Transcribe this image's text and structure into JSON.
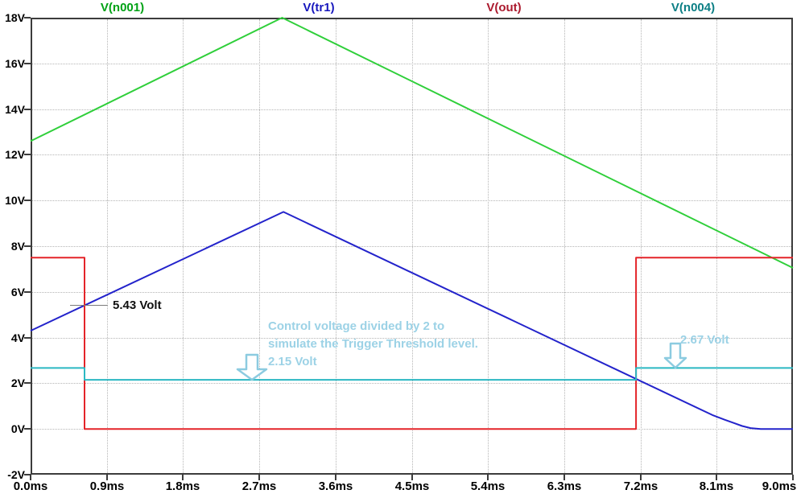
{
  "legend": {
    "items": [
      {
        "label": "V(n001)",
        "text_color": "#00a215",
        "trace_color": "#2fcf3a"
      },
      {
        "label": "V(tr1)",
        "text_color": "#1717bd",
        "trace_color": "#2323cb"
      },
      {
        "label": "V(out)",
        "text_color": "#ab1a2e",
        "trace_color": "#e42429"
      },
      {
        "label": "V(n004)",
        "text_color": "#0c7f85",
        "trace_color": "#2bb8c2"
      }
    ]
  },
  "axes": {
    "x": {
      "tick_labels": [
        "0.0ms",
        "0.9ms",
        "1.8ms",
        "2.7ms",
        "3.6ms",
        "4.5ms",
        "5.4ms",
        "6.3ms",
        "7.2ms",
        "8.1ms",
        "9.0ms"
      ],
      "tick_values": [
        0,
        0.9,
        1.8,
        2.7,
        3.6,
        4.5,
        5.4,
        6.3,
        7.2,
        8.1,
        9
      ]
    },
    "y": {
      "tick_labels": [
        "18V",
        "16V",
        "14V",
        "12V",
        "10V",
        "8V",
        "6V",
        "4V",
        "2V",
        "0V",
        "-2V"
      ],
      "tick_values": [
        18,
        16,
        14,
        12,
        10,
        8,
        6,
        4,
        2,
        0,
        -2
      ]
    }
  },
  "annotations": {
    "trigger_level_text": "5.43 Volt",
    "note_line1": "Control voltage divided by 2 to",
    "note_line2": "simulate the Trigger Threshold level.",
    "note_line3": "2.15 Volt",
    "right_marker_text": "2.67 Volt",
    "note_color": "#9cd2e6",
    "arrow_color": "#8ccbe0"
  },
  "chart_data": {
    "type": "line",
    "title": "",
    "xlabel": "",
    "ylabel": "",
    "x_unit": "ms",
    "y_unit": "V",
    "x_range": [
      0,
      9
    ],
    "y_range": [
      -2,
      18
    ],
    "grid": true,
    "legend_position": "top",
    "series": [
      {
        "name": "V(n001)",
        "color": "#2fcf3a",
        "points": [
          [
            0,
            12.6
          ],
          [
            2.97,
            18
          ],
          [
            9,
            7.05
          ]
        ]
      },
      {
        "name": "V(tr1)",
        "color": "#2323cb",
        "points": [
          [
            0,
            4.3
          ],
          [
            2.985,
            9.5
          ],
          [
            8.05,
            0.61
          ],
          [
            8.19,
            0.41
          ],
          [
            8.31,
            0.25
          ],
          [
            8.4,
            0.13
          ],
          [
            8.5,
            0.04
          ],
          [
            8.62,
            0
          ],
          [
            9,
            0
          ]
        ]
      },
      {
        "name": "V(out)",
        "color": "#e42429",
        "points": [
          [
            0,
            7.5
          ],
          [
            0.637,
            7.5
          ],
          [
            0.637,
            0
          ],
          [
            7.148,
            0
          ],
          [
            7.148,
            7.5
          ],
          [
            9,
            7.5
          ]
        ]
      },
      {
        "name": "V(n004)",
        "color": "#2bb8c2",
        "points": [
          [
            0,
            2.67
          ],
          [
            0.637,
            2.67
          ],
          [
            0.637,
            2.15
          ],
          [
            7.148,
            2.15
          ],
          [
            7.148,
            2.67
          ],
          [
            9,
            2.67
          ]
        ]
      }
    ]
  }
}
